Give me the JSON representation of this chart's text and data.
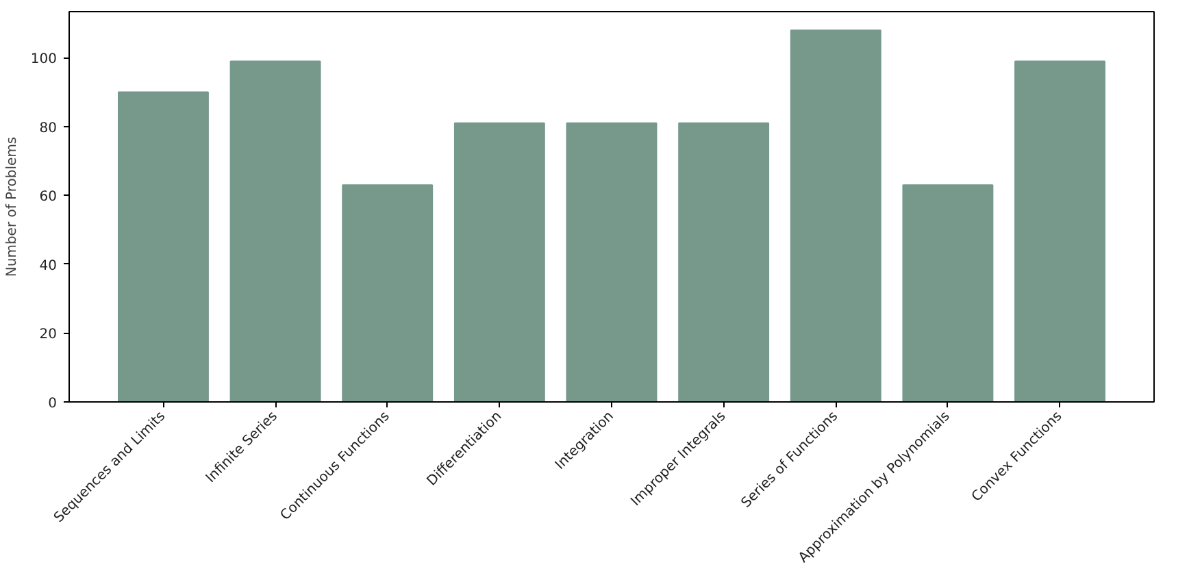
{
  "chart_data": {
    "type": "bar",
    "ylabel": "Number of Problems",
    "categories": [
      "Sequences and Limits",
      "Infinite Series",
      "Continuous Functions",
      "Differentiation",
      "Integration",
      "Improper Integrals",
      "Series of Functions",
      "Approximation by Polynomials",
      "Convex Functions"
    ],
    "values": [
      90,
      99,
      63,
      81,
      81,
      81,
      108,
      63,
      99
    ],
    "color": "#76998b",
    "ylim": [
      0,
      113.4
    ],
    "yticks": [
      0,
      20,
      40,
      60,
      80,
      100
    ],
    "grid": false
  }
}
